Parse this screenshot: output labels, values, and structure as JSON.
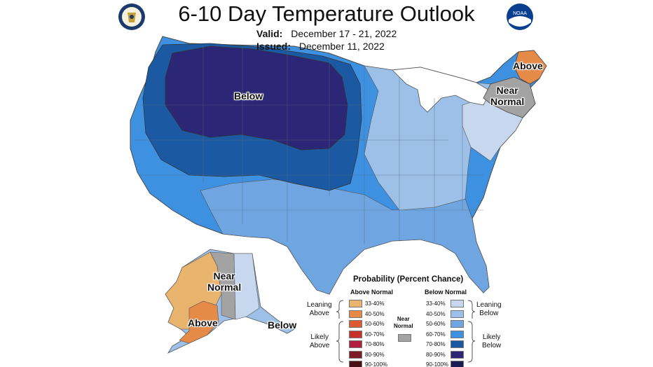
{
  "header": {
    "title": "6-10 Day Temperature Outlook",
    "valid_label": "Valid:",
    "valid_dates": "December 17 - 21, 2022",
    "issued_label": "Issued:",
    "issued_date": "December 11, 2022"
  },
  "logos": {
    "left": "doc-seal-icon",
    "right": "noaa-logo-icon",
    "right_text": "NOAA"
  },
  "map_labels": {
    "below_conus": "Below",
    "above_ne": "Above",
    "near_normal_ne_1": "Near",
    "near_normal_ne_2": "Normal",
    "near_normal_ak_1": "Near",
    "near_normal_ak_2": "Normal",
    "above_ak": "Above",
    "below_ak": "Below"
  },
  "legend": {
    "title": "Probability (Percent Chance)",
    "above_header": "Above Normal",
    "below_header": "Below Normal",
    "near_1": "Near",
    "near_2": "Normal",
    "near_color": "#a3a3a3",
    "leaning_above_1": "Leaning",
    "leaning_above_2": "Above",
    "likely_above_1": "Likely",
    "likely_above_2": "Above",
    "leaning_below_1": "Leaning",
    "leaning_below_2": "Below",
    "likely_below_1": "Likely",
    "likely_below_2": "Below",
    "above_bins": [
      {
        "label": "33-40%",
        "color": "#e9b46e"
      },
      {
        "label": "40-50%",
        "color": "#e68a48"
      },
      {
        "label": "50-60%",
        "color": "#dd5b33"
      },
      {
        "label": "60-70%",
        "color": "#c8302d"
      },
      {
        "label": "70-80%",
        "color": "#b01f3d"
      },
      {
        "label": "80-90%",
        "color": "#7d1b27"
      },
      {
        "label": "90-100%",
        "color": "#4a1015"
      }
    ],
    "below_bins": [
      {
        "label": "33-40%",
        "color": "#c6d7ee"
      },
      {
        "label": "40-50%",
        "color": "#9cc0e8"
      },
      {
        "label": "50-60%",
        "color": "#6fa6e2"
      },
      {
        "label": "60-70%",
        "color": "#3d91e0"
      },
      {
        "label": "70-80%",
        "color": "#1b5aa3"
      },
      {
        "label": "80-90%",
        "color": "#2b2675"
      },
      {
        "label": "90-100%",
        "color": "#1c1c55"
      }
    ]
  }
}
